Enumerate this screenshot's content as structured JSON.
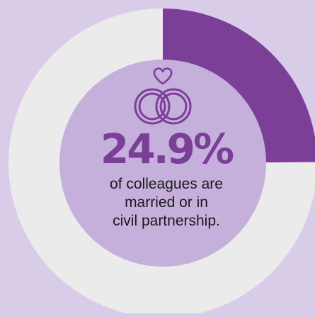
{
  "chart_data": {
    "type": "pie",
    "style": "donut",
    "values": [
      24.9,
      75.1
    ],
    "colors": [
      "#7b3f98",
      "#ebebeb"
    ]
  },
  "stat": {
    "value": "24.9%",
    "caption_lines": [
      "of colleagues are",
      "married or in",
      "civil partnership."
    ]
  },
  "icons": {
    "top": "heart-icon",
    "main": "wedding-rings-icon"
  },
  "colors": {
    "background": "#d9cce8",
    "accent": "#7b3f98",
    "ring_remainder": "#ebebeb",
    "inner_disc": "#c5b0db",
    "text": "#1a1a1a"
  }
}
